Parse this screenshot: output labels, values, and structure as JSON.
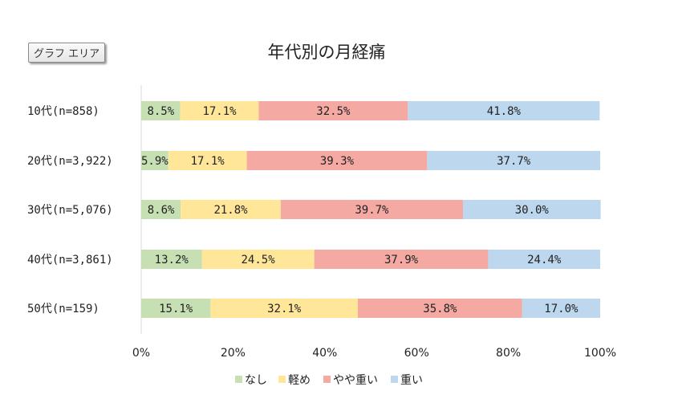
{
  "chart_area_button": {
    "label": "グラフ エリア"
  },
  "chart_data": {
    "type": "bar",
    "orientation": "horizontal",
    "stacked": "percent",
    "title": "年代別の月経痛",
    "categories": [
      "10代(n=858)",
      "20代(n=3,922)",
      "30代(n=5,076)",
      "40代(n=3,861)",
      "50代(n=159)"
    ],
    "series": [
      {
        "name": "なし",
        "color": "#c6e0b4",
        "values": [
          8.5,
          5.9,
          8.6,
          13.2,
          15.1
        ],
        "labels": [
          "8.5%",
          "5.9%",
          "8.6%",
          "13.2%",
          "15.1%"
        ]
      },
      {
        "name": "軽め",
        "color": "#ffe699",
        "values": [
          17.1,
          17.1,
          21.8,
          24.5,
          32.1
        ],
        "labels": [
          "17.1%",
          "17.1%",
          "21.8%",
          "24.5%",
          "32.1%"
        ]
      },
      {
        "name": "やや重い",
        "color": "#f4a9a3",
        "values": [
          32.5,
          39.3,
          39.7,
          37.9,
          35.8
        ],
        "labels": [
          "32.5%",
          "39.3%",
          "39.7%",
          "37.9%",
          "35.8%"
        ]
      },
      {
        "name": "重い",
        "color": "#bdd7ee",
        "values": [
          41.8,
          37.7,
          30.0,
          24.4,
          17.0
        ],
        "labels": [
          "41.8%",
          "37.7%",
          "30.0%",
          "24.4%",
          "17.0%"
        ]
      }
    ],
    "xlim": [
      0,
      100
    ],
    "x_ticks": [
      "0%",
      "20%",
      "40%",
      "60%",
      "80%",
      "100%"
    ],
    "legend_position": "bottom",
    "grid": false
  }
}
